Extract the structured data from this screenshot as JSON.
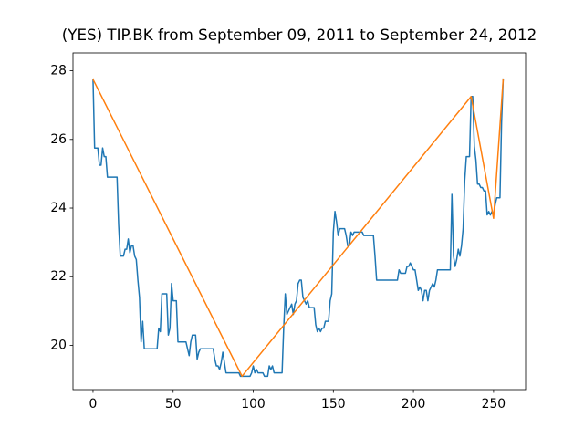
{
  "chart_data": {
    "type": "line",
    "title": "(YES) TIP.BK from September 09, 2011 to September 24, 2012",
    "xlim": [
      -12.5,
      270
    ],
    "xticks": [
      0,
      50,
      100,
      150,
      200,
      250
    ],
    "ylim": [
      18.71,
      28.52
    ],
    "yticks": [
      20,
      22,
      24,
      26,
      28
    ],
    "series": [
      {
        "color": "#1f77b4",
        "values": [
          27.75,
          25.75,
          25.75,
          25.75,
          25.25,
          25.25,
          25.75,
          25.5,
          25.5,
          24.9,
          24.9,
          24.9,
          24.9,
          24.9,
          24.9,
          24.9,
          23.5,
          22.6,
          22.6,
          22.6,
          22.8,
          22.8,
          23.1,
          22.7,
          22.9,
          22.9,
          22.6,
          22.5,
          21.9,
          21.4,
          20.1,
          20.7,
          19.9,
          19.9,
          19.9,
          19.9,
          19.9,
          19.9,
          19.9,
          19.9,
          19.9,
          20.5,
          20.4,
          21.5,
          21.5,
          21.5,
          21.5,
          20.3,
          20.5,
          21.8,
          21.3,
          21.3,
          21.3,
          20.1,
          20.1,
          20.1,
          20.1,
          20.1,
          20.1,
          19.9,
          19.7,
          20.1,
          20.3,
          20.3,
          20.3,
          19.6,
          19.8,
          19.9,
          19.9,
          19.9,
          19.9,
          19.9,
          19.9,
          19.9,
          19.9,
          19.9,
          19.6,
          19.4,
          19.4,
          19.3,
          19.5,
          19.8,
          19.5,
          19.2,
          19.2,
          19.2,
          19.2,
          19.2,
          19.2,
          19.2,
          19.2,
          19.2,
          19.1,
          19.1,
          19.1,
          19.1,
          19.1,
          19.1,
          19.1,
          19.2,
          19.4,
          19.2,
          19.3,
          19.2,
          19.2,
          19.2,
          19.2,
          19.1,
          19.1,
          19.1,
          19.4,
          19.3,
          19.4,
          19.2,
          19.2,
          19.2,
          19.2,
          19.2,
          19.2,
          20.5,
          21.5,
          20.9,
          21.0,
          21.1,
          21.2,
          20.9,
          21.2,
          21.3,
          21.8,
          21.9,
          21.9,
          21.4,
          21.3,
          21.2,
          21.3,
          21.1,
          21.1,
          21.1,
          21.1,
          20.6,
          20.4,
          20.5,
          20.4,
          20.5,
          20.5,
          20.7,
          20.7,
          20.7,
          21.3,
          21.5,
          23.3,
          23.9,
          23.6,
          23.2,
          23.4,
          23.4,
          23.4,
          23.4,
          23.2,
          22.9,
          22.9,
          23.3,
          23.2,
          23.3,
          23.3,
          23.3,
          23.3,
          23.3,
          23.3,
          23.2,
          23.2,
          23.2,
          23.2,
          23.2,
          23.2,
          23.2,
          22.6,
          21.9,
          21.9,
          21.9,
          21.9,
          21.9,
          21.9,
          21.9,
          21.9,
          21.9,
          21.9,
          21.9,
          21.9,
          21.9,
          21.9,
          22.2,
          22.1,
          22.1,
          22.1,
          22.1,
          22.3,
          22.3,
          22.4,
          22.3,
          22.2,
          22.2,
          21.9,
          21.6,
          21.7,
          21.6,
          21.3,
          21.6,
          21.6,
          21.3,
          21.6,
          21.7,
          21.8,
          21.7,
          21.9,
          22.2,
          22.2,
          22.2,
          22.2,
          22.2,
          22.2,
          22.2,
          22.2,
          22.2,
          24.4,
          22.6,
          22.3,
          22.5,
          22.8,
          22.6,
          22.9,
          23.4,
          24.8,
          25.5,
          25.5,
          25.5,
          27.25,
          27.25,
          25.8,
          25.4,
          24.7,
          24.7,
          24.6,
          24.6,
          24.5,
          24.5,
          23.8,
          23.9,
          23.8,
          23.9,
          23.8,
          24.1,
          24.3,
          24.3,
          24.3,
          26.5,
          27.75
        ]
      },
      {
        "color": "#ff7f0e",
        "x": [
          0,
          93,
          236,
          250,
          256
        ],
        "values": [
          27.75,
          19.1,
          27.25,
          23.7,
          27.75
        ]
      }
    ]
  }
}
